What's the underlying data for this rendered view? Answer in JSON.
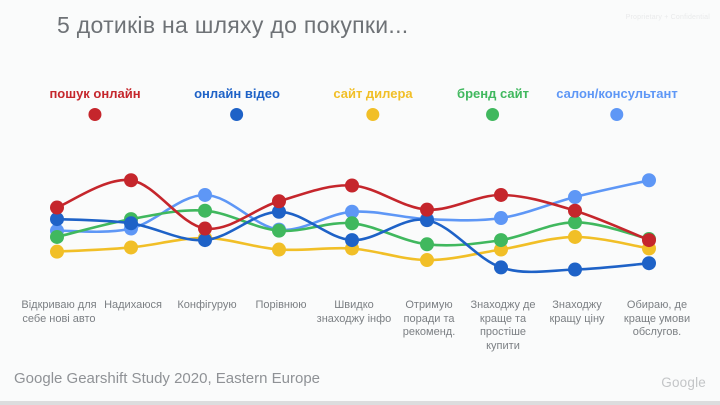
{
  "slide": {
    "title": "5 дотиків на шляху до покупки...",
    "proprietary_note": "Proprietary + Confidential",
    "source": "Google Gearshift Study 2020, Eastern Europe",
    "brand": "Google"
  },
  "chart_data": {
    "type": "line",
    "title": "5 дотиків на шляху до покупки...",
    "categories": [
      "Відкриваю для себе нові авто",
      "Надихаюся",
      "Конфігурую",
      "Порівнюю",
      "Швидко знаходжу інфо",
      "Отримую поради та рекоменд.",
      "Знаходжу де краще та простіше купити",
      "Знаходжу кращу ціну",
      "Обираю, де краще умови обслугов."
    ],
    "series": [
      {
        "name": "пошук онлайн",
        "color": "#C5262C",
        "values": [
          69,
          95,
          49,
          75,
          90,
          67,
          81,
          66,
          38
        ]
      },
      {
        "name": "онлайн відео",
        "color": "#1E62C7",
        "values": [
          58,
          54,
          38,
          65,
          38,
          57,
          12,
          10,
          16
        ]
      },
      {
        "name": "сайт дилера",
        "color": "#F1BF27",
        "values": [
          27,
          31,
          40,
          29,
          30,
          19,
          29,
          41,
          30
        ]
      },
      {
        "name": "бренд сайт",
        "color": "#40B85E",
        "values": [
          41,
          58,
          66,
          47,
          54,
          34,
          38,
          55,
          39
        ]
      },
      {
        "name": "салон/консультант",
        "color": "#5E97F6",
        "values": [
          47,
          49,
          81,
          48,
          65,
          58,
          59,
          79,
          95
        ]
      }
    ],
    "value_scale": "relative 0-100, estimated from plot (no y-axis shown)",
    "draw_order": [
      4,
      2,
      3,
      1,
      0
    ],
    "legend_position": "top",
    "grid": false,
    "xlabel": "",
    "ylabel": ""
  }
}
